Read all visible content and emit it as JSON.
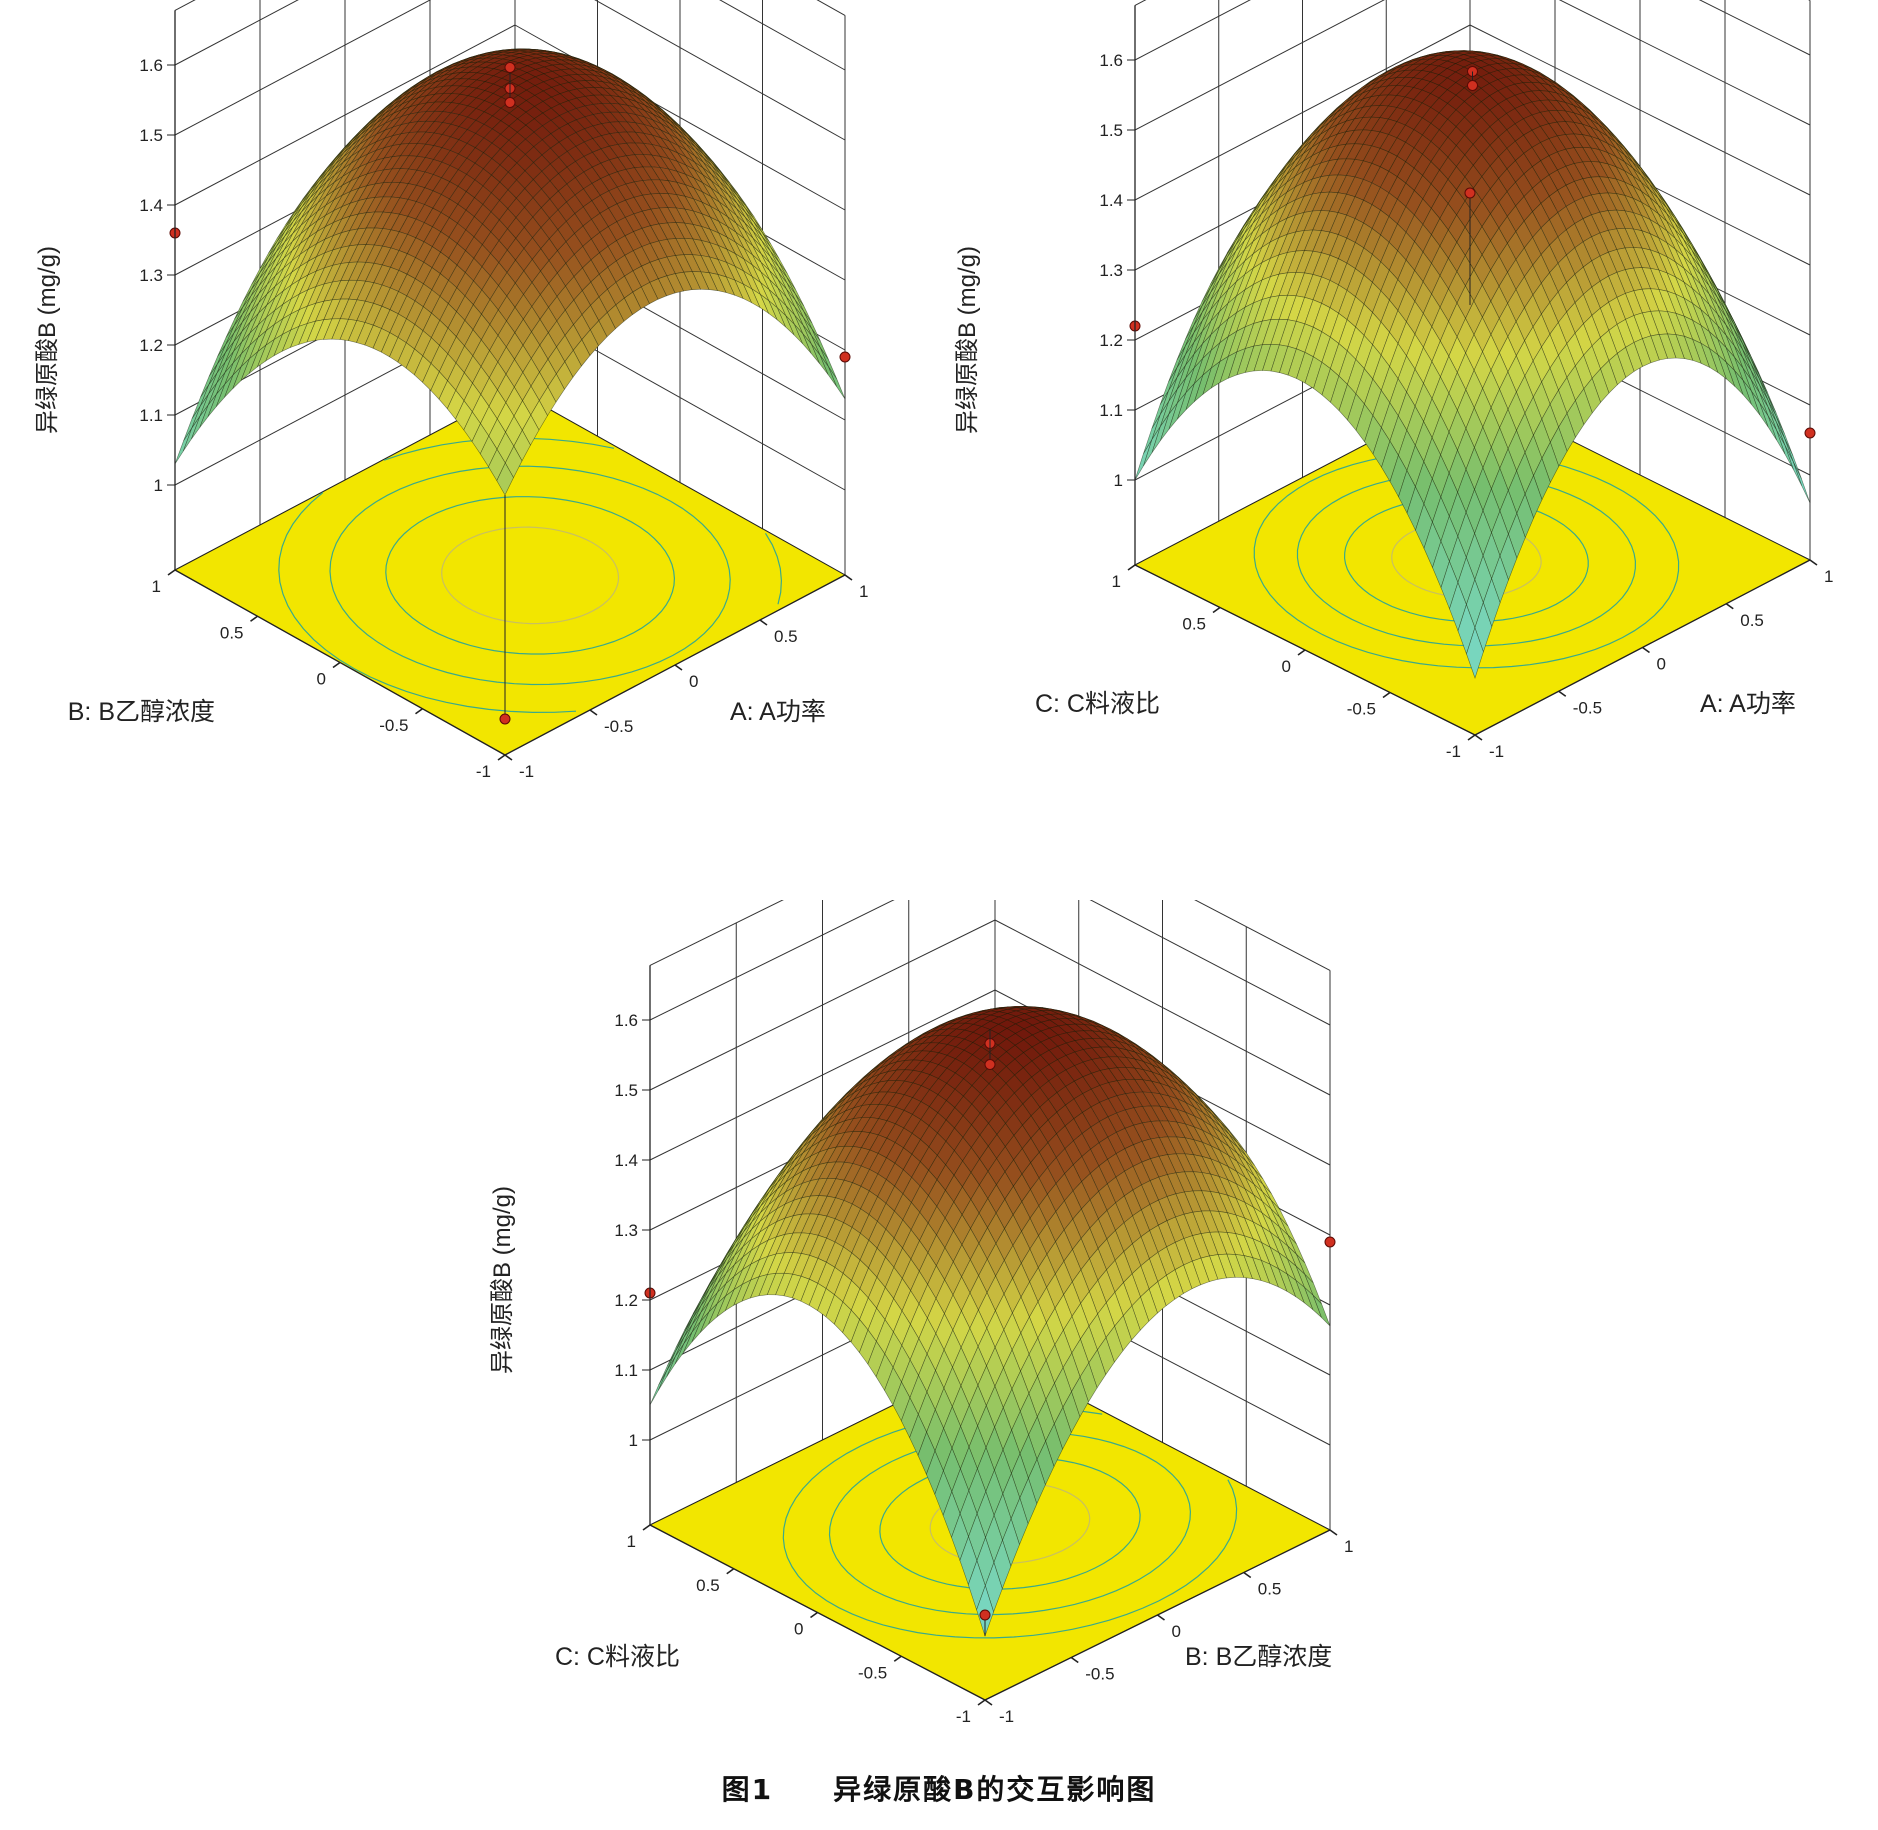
{
  "figure_caption": {
    "number": "图1",
    "text": "异绿原酸B的交互影响图"
  },
  "colors": {
    "floor": "#f2e600",
    "contour": "#3aaa8a",
    "point": "#d03020",
    "surface_low": "#7fd6bc",
    "surface_mid": "#d9d93a",
    "surface_high": "#7a1a08"
  },
  "chart_data": [
    {
      "type": "surface3d",
      "z_label": "异绿原酸B (mg/g)",
      "x_label": "A: A功率",
      "y_label": "B: B乙醇浓度",
      "z_ticks": [
        "1",
        "1.1",
        "1.2",
        "1.3",
        "1.4",
        "1.5",
        "1.6"
      ],
      "x_ticks": [
        "-1",
        "-0.5",
        "0",
        "0.5",
        "1"
      ],
      "y_ticks": [
        "-1",
        "-0.5",
        "0",
        "0.5",
        "1"
      ],
      "zlim": [
        1.0,
        1.6
      ],
      "surface": {
        "b0": 1.58,
        "bx": 0.02,
        "by": -0.03,
        "bxx": -0.22,
        "byy": -0.2,
        "bxy": 0.08
      },
      "design_points": [
        {
          "x": 0,
          "y": 0,
          "z": 1.6
        },
        {
          "x": 0,
          "y": 0,
          "z": 1.57
        },
        {
          "x": 0,
          "y": 0,
          "z": 1.55
        },
        {
          "x": -1,
          "y": 1,
          "z": 1.36
        },
        {
          "x": 1,
          "y": -1,
          "z": 1.19
        },
        {
          "x": -1,
          "y": -1,
          "z": 0.93
        }
      ]
    },
    {
      "type": "surface3d",
      "z_label": "异绿原酸B (mg/g)",
      "x_label": "A: A功率",
      "y_label": "C: C料液比",
      "z_ticks": [
        "1",
        "1.1",
        "1.2",
        "1.3",
        "1.4",
        "1.5",
        "1.6"
      ],
      "x_ticks": [
        "-1",
        "-0.5",
        "0",
        "0.5",
        "1"
      ],
      "y_ticks": [
        "-1",
        "-0.5",
        "0",
        "0.5",
        "1"
      ],
      "zlim": [
        1.0,
        1.6
      ],
      "surface": {
        "b0": 1.58,
        "bx": 0.0,
        "by": 0.02,
        "bxx": -0.32,
        "byy": -0.28,
        "bxy": 0.0
      },
      "design_points": [
        {
          "x": 0,
          "y": 0,
          "z": 1.58
        },
        {
          "x": 0,
          "y": 0,
          "z": 1.56
        },
        {
          "x": -1,
          "y": 1,
          "z": 1.22
        },
        {
          "x": 1,
          "y": -1,
          "z": 1.06
        },
        {
          "x": 1,
          "y": 1,
          "z": 1.16
        }
      ]
    },
    {
      "type": "surface3d",
      "z_label": "异绿原酸B (mg/g)",
      "x_label": "B: B乙醇浓度",
      "y_label": "C: C料液比",
      "z_ticks": [
        "1",
        "1.1",
        "1.2",
        "1.3",
        "1.4",
        "1.5",
        "1.6"
      ],
      "x_ticks": [
        "-1",
        "-0.5",
        "0",
        "0.5",
        "1"
      ],
      "y_ticks": [
        "-1",
        "-0.5",
        "0",
        "0.5",
        "1"
      ],
      "zlim": [
        1.0,
        1.6
      ],
      "surface": {
        "b0": 1.59,
        "bx": 0.04,
        "by": -0.02,
        "bxx": -0.24,
        "byy": -0.3,
        "bxy": -0.06
      },
      "design_points": [
        {
          "x": 0,
          "y": 0,
          "z": 1.57
        },
        {
          "x": 0,
          "y": 0,
          "z": 1.54
        },
        {
          "x": -1,
          "y": 1,
          "z": 1.21
        },
        {
          "x": 1,
          "y": -1,
          "z": 1.29
        },
        {
          "x": -1,
          "y": -1,
          "z": 1.0
        }
      ]
    }
  ]
}
